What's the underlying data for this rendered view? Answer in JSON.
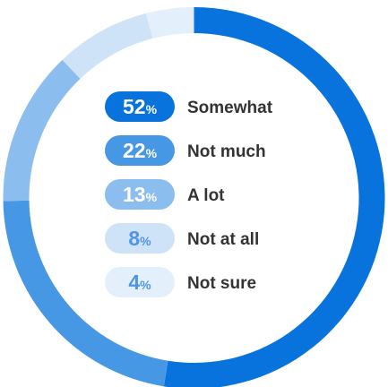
{
  "chart_data": {
    "type": "pie",
    "variant": "donut",
    "unit_suffix": "%",
    "slices": [
      {
        "label": "Somewhat",
        "value": 52,
        "color": "#0873dc",
        "text_color": "#ffffff"
      },
      {
        "label": "Not much",
        "value": 22,
        "color": "#4798e4",
        "text_color": "#ffffff"
      },
      {
        "label": "A lot",
        "value": 13,
        "color": "#8bbdee",
        "text_color": "#ffffff"
      },
      {
        "label": "Not at all",
        "value": 8,
        "color": "#cfe3f8",
        "text_color": "#4f95e0"
      },
      {
        "label": "Not sure",
        "value": 4,
        "color": "#e3effb",
        "text_color": "#4f95e0"
      }
    ],
    "legend_placement": "center",
    "label_color": "#333333"
  }
}
